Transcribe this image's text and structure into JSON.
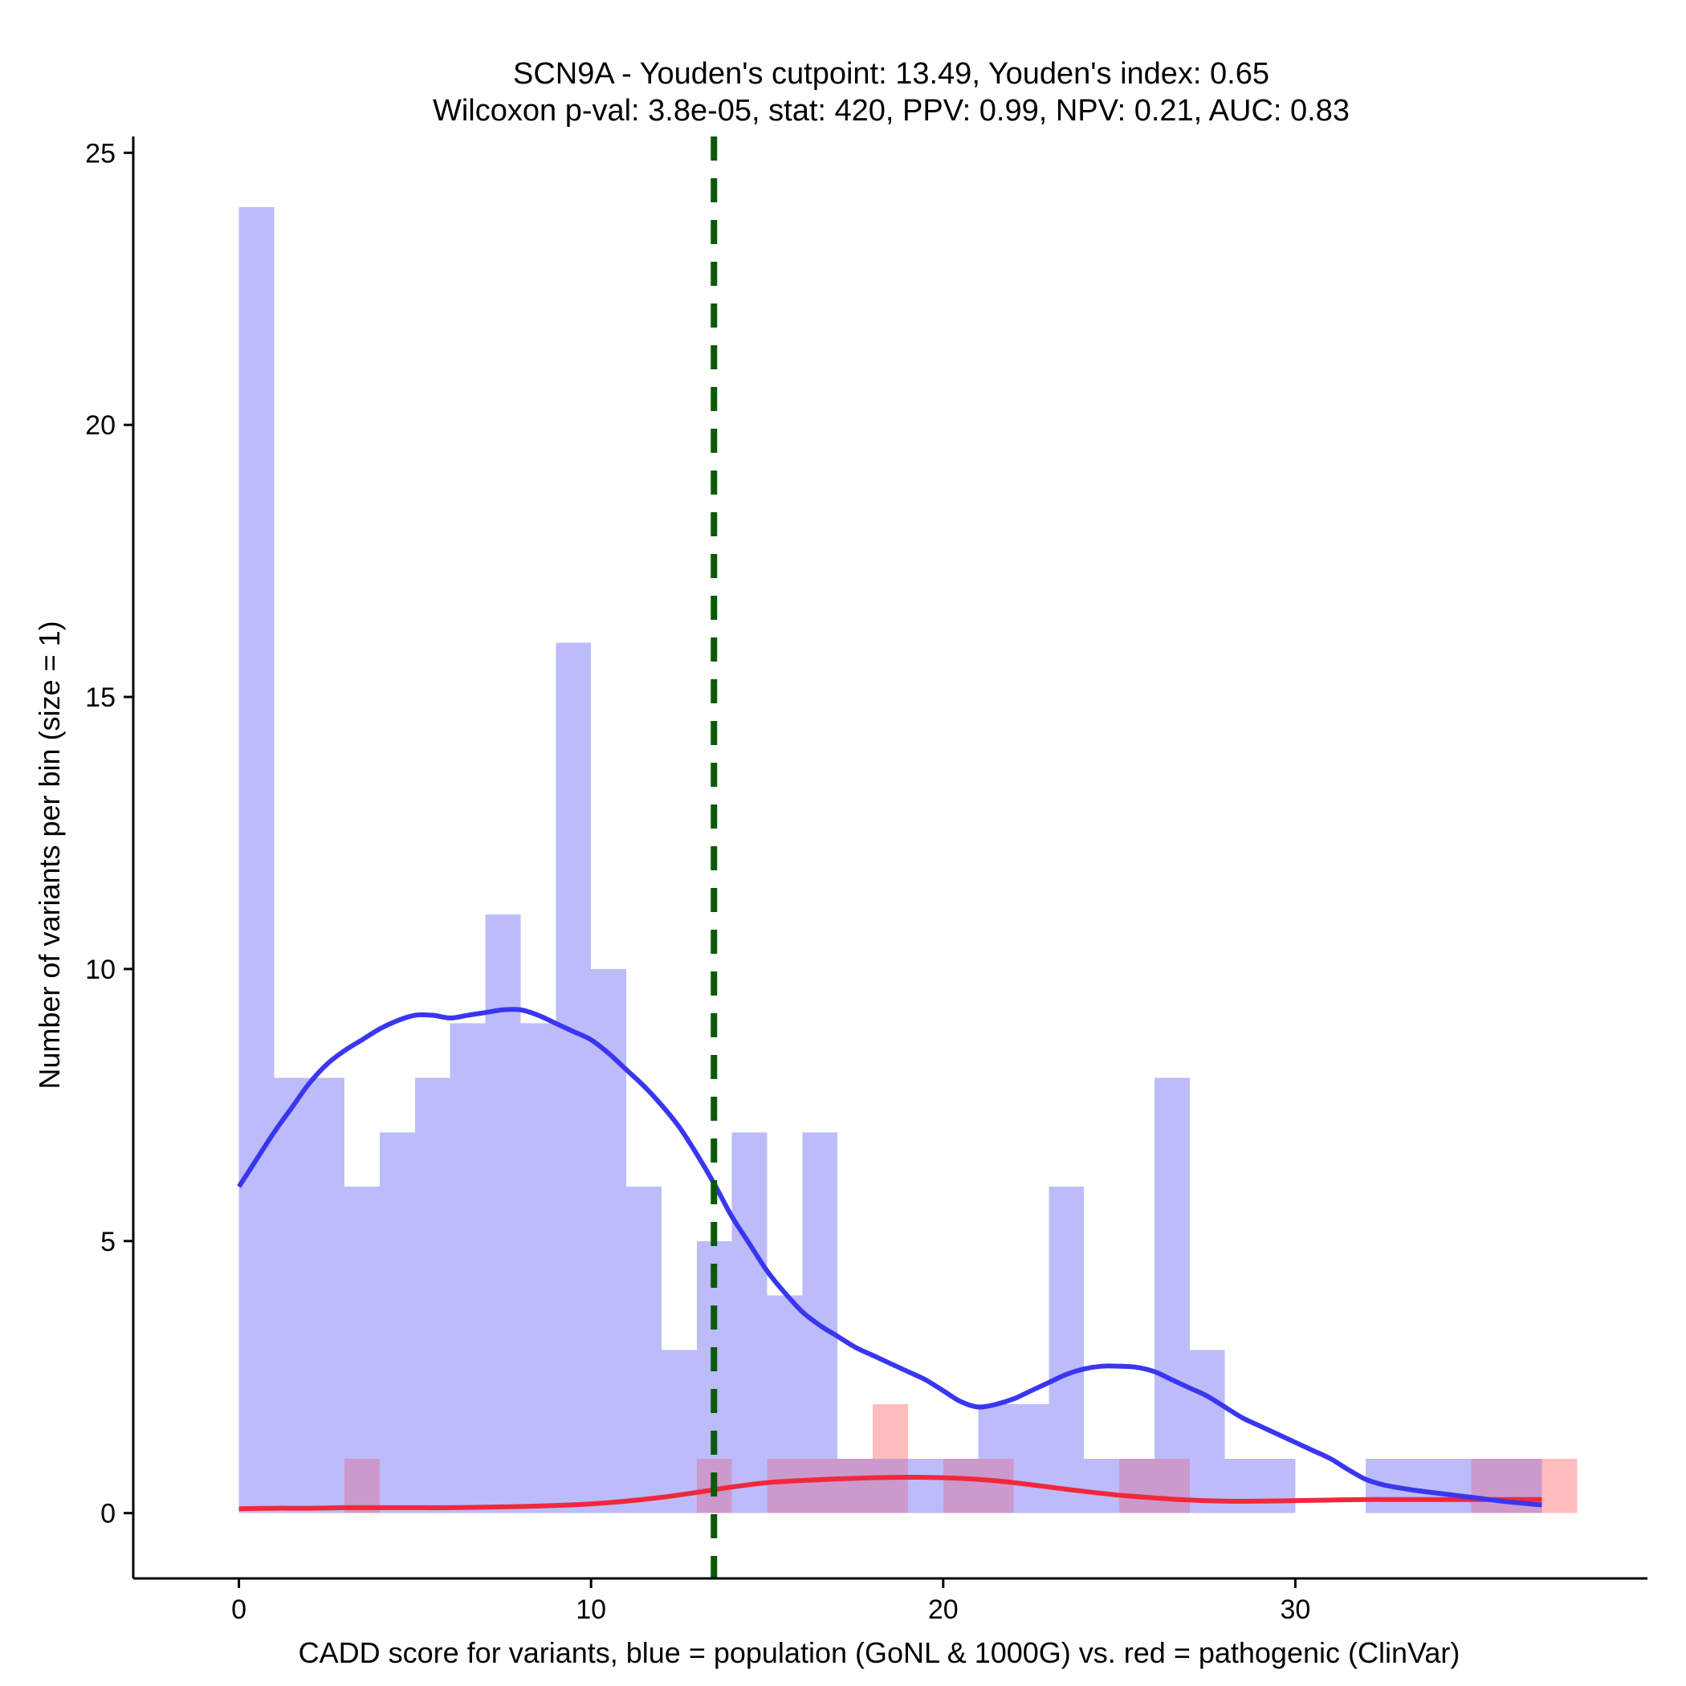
{
  "chart_data": {
    "type": "bar",
    "title_line1": "SCN9A - Youden's cutpoint: 13.49, Youden's index: 0.65",
    "title_line2": "Wilcoxon p-val: 3.8e-05, stat: 420, PPV: 0.99, NPV: 0.21, AUC: 0.83",
    "xlabel": "CADD score for variants, blue = population (GoNL & 1000G) vs. red = pathogenic (ClinVar)",
    "ylabel": "Number of variants per bin (size = 1)",
    "xlim": [
      -3,
      40
    ],
    "ylim": [
      -1.2,
      25.3
    ],
    "x_ticks": [
      0,
      10,
      20,
      30
    ],
    "x_tick_labels": [
      "0",
      "10",
      "20",
      "30"
    ],
    "y_ticks": [
      0,
      5,
      10,
      15,
      20,
      25
    ],
    "y_tick_labels": [
      "0",
      "5",
      "10",
      "15",
      "20",
      "25"
    ],
    "bin_size": 1,
    "cutpoint": 13.49,
    "colors": {
      "population": "#bcbcfa",
      "population_line": "#3a36f0",
      "pathogenic": "#ffbcbc",
      "pathogenic_line": "#f0283c",
      "overlap": "#cc99cc",
      "cutpoint": "#0a5a0a"
    },
    "series": [
      {
        "name": "population (GoNL & 1000G)",
        "bin_starts": [
          0,
          1,
          2,
          3,
          4,
          5,
          6,
          7,
          8,
          9,
          10,
          11,
          12,
          13,
          14,
          15,
          16,
          17,
          18,
          19,
          20,
          21,
          22,
          23,
          24,
          25,
          26,
          27,
          28,
          29,
          30,
          31,
          32,
          33,
          34,
          35,
          36,
          37
        ],
        "values": [
          24,
          8,
          8,
          6,
          7,
          8,
          9,
          11,
          9,
          16,
          10,
          6,
          3,
          5,
          7,
          4,
          7,
          1,
          1,
          1,
          1,
          2,
          2,
          6,
          1,
          1,
          8,
          3,
          1,
          1,
          0,
          0,
          1,
          1,
          1,
          1,
          1,
          0
        ]
      },
      {
        "name": "pathogenic (ClinVar)",
        "bin_starts": [
          0,
          1,
          2,
          3,
          4,
          5,
          6,
          7,
          8,
          9,
          10,
          11,
          12,
          13,
          14,
          15,
          16,
          17,
          18,
          19,
          20,
          21,
          22,
          23,
          24,
          25,
          26,
          27,
          28,
          29,
          30,
          31,
          32,
          33,
          34,
          35,
          36,
          37
        ],
        "values": [
          0,
          0,
          0,
          1,
          0,
          0,
          0,
          0,
          0,
          0,
          0,
          0,
          0,
          1,
          0,
          1,
          1,
          1,
          2,
          0,
          1,
          1,
          0,
          0,
          0,
          1,
          1,
          0,
          0,
          0,
          0,
          0,
          0,
          0,
          0,
          1,
          1,
          1
        ]
      }
    ],
    "density_population": {
      "x": [
        0,
        0.5,
        1,
        1.5,
        2,
        2.5,
        3,
        3.5,
        4,
        4.5,
        5,
        5.5,
        6,
        6.5,
        7,
        7.5,
        8,
        8.5,
        9,
        9.5,
        10,
        10.5,
        11,
        11.5,
        12,
        12.5,
        13,
        13.5,
        14,
        14.5,
        15,
        15.5,
        16,
        16.5,
        17,
        17.5,
        18,
        18.5,
        19,
        19.5,
        20,
        20.5,
        21,
        21.5,
        22,
        22.5,
        23,
        23.5,
        24,
        24.5,
        25,
        25.5,
        26,
        26.5,
        27,
        27.5,
        28,
        28.5,
        29,
        29.5,
        30,
        30.5,
        31,
        31.5,
        32,
        32.5,
        33,
        33.5,
        34,
        34.5,
        35,
        35.5,
        36,
        36.5,
        37
      ],
      "y": [
        6.0,
        6.5,
        7.0,
        7.45,
        7.9,
        8.25,
        8.5,
        8.7,
        8.9,
        9.05,
        9.15,
        9.15,
        9.1,
        9.15,
        9.2,
        9.25,
        9.25,
        9.15,
        9.0,
        8.85,
        8.7,
        8.45,
        8.15,
        7.85,
        7.5,
        7.1,
        6.6,
        6.05,
        5.45,
        4.95,
        4.45,
        4.05,
        3.7,
        3.45,
        3.25,
        3.05,
        2.9,
        2.75,
        2.6,
        2.45,
        2.25,
        2.05,
        1.95,
        2.0,
        2.1,
        2.25,
        2.4,
        2.55,
        2.65,
        2.7,
        2.7,
        2.68,
        2.6,
        2.45,
        2.3,
        2.15,
        1.95,
        1.75,
        1.6,
        1.45,
        1.3,
        1.15,
        1.0,
        0.8,
        0.62,
        0.52,
        0.46,
        0.41,
        0.37,
        0.33,
        0.29,
        0.25,
        0.21,
        0.18,
        0.15
      ]
    },
    "density_pathogenic": {
      "x": [
        0,
        1,
        2,
        3,
        4,
        5,
        6,
        7,
        8,
        9,
        10,
        11,
        12,
        13,
        14,
        15,
        16,
        17,
        18,
        19,
        20,
        21,
        22,
        23,
        24,
        25,
        26,
        27,
        28,
        29,
        30,
        31,
        32,
        33,
        34,
        35,
        36,
        37
      ],
      "y": [
        0.08,
        0.09,
        0.09,
        0.1,
        0.1,
        0.1,
        0.1,
        0.11,
        0.12,
        0.14,
        0.17,
        0.22,
        0.29,
        0.38,
        0.48,
        0.56,
        0.6,
        0.63,
        0.65,
        0.66,
        0.65,
        0.62,
        0.56,
        0.48,
        0.4,
        0.33,
        0.28,
        0.24,
        0.22,
        0.22,
        0.23,
        0.24,
        0.25,
        0.25,
        0.25,
        0.25,
        0.25,
        0.25
      ]
    }
  }
}
